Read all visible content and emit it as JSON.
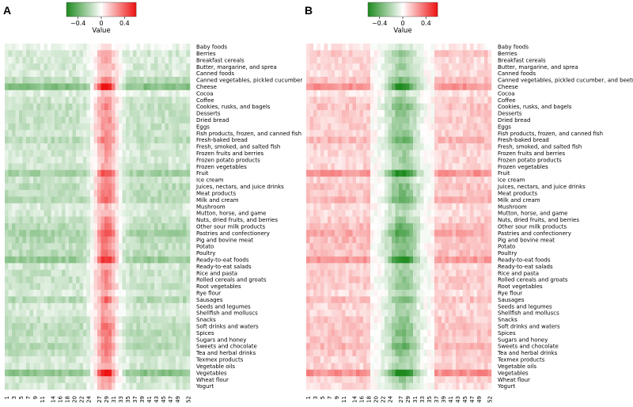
{
  "chart_data": [
    {
      "type": "heatmap",
      "panel_label": "A",
      "legend": {
        "title": "Value",
        "ticks": [
          "−0.4",
          "0",
          "0.4"
        ],
        "range": [
          -0.6,
          0.6
        ],
        "low_color": "#1e8a1e",
        "mid_color": "#ffffff",
        "high_color": "#ee1111"
      },
      "categories": [
        "Baby foods",
        "Berries",
        "Breakfast cereals",
        "Butter, margarine, and sprea",
        "Canned foods",
        "Canned vegetables, pickled cucumber",
        "Cheese",
        "Cocoa",
        "Coffee",
        "Cookies, rusks, and bagels",
        "Desserts",
        "Dried bread",
        "Eggs",
        "Fish products, frozen, and canned fish",
        "Fresh-baked bread",
        "Fresh, smoked, and salted fish",
        "Frozen fruits and berries",
        "Frozen potato products",
        "Frozen vegetables",
        "Fruit",
        "Ice cream",
        "Juices, nectars, and juice drinks",
        "Meat products",
        "Milk and cream",
        "Mushroom",
        "Mutton, horse, and game",
        "Nuts, dried fruits, and berries",
        "Other sour milk products",
        "Pastries and confectionery",
        "Pig and bovine meat",
        "Potato",
        "Poultry",
        "Ready-to-eat foods",
        "Ready-to-eat salads",
        "Rice and pasta",
        "Rolled cereals and groats",
        "Root vegetables",
        "Rye flour",
        "Sausages",
        "Seeds and legumes",
        "Shellfish and molluscs",
        "Snacks",
        "Soft drinks and waters",
        "Spices",
        "Sugars and honey",
        "Sweets and chocolate",
        "Tea and herbal drinks",
        "Texmex products",
        "Vegetable oils",
        "Vegetables",
        "Wheat flour",
        "Yogurt"
      ],
      "x_ticks": [
        "1",
        "3",
        "5",
        "7",
        "9",
        "11",
        "14",
        "16",
        "18",
        "20",
        "22",
        "24",
        "27",
        "29",
        "31",
        "33",
        "35",
        "37",
        "39",
        "41",
        "43",
        "45",
        "47",
        "49",
        "52"
      ],
      "weeks": 52,
      "row_intensity": [
        0.15,
        0.35,
        0.3,
        0.35,
        0.3,
        0.55,
        1.0,
        0.25,
        0.4,
        0.5,
        0.45,
        0.45,
        0.45,
        0.4,
        0.55,
        0.4,
        0.35,
        0.35,
        0.4,
        0.75,
        0.4,
        0.55,
        0.55,
        0.6,
        0.3,
        0.35,
        0.45,
        0.6,
        0.75,
        0.6,
        0.5,
        0.55,
        0.85,
        0.35,
        0.45,
        0.45,
        0.45,
        0.3,
        0.6,
        0.35,
        0.35,
        0.45,
        0.55,
        0.55,
        0.45,
        0.6,
        0.5,
        0.35,
        0.35,
        0.95,
        0.4,
        0.35
      ],
      "value_pattern": "Weeks 1–22 and 38–52 mildly negative (green); peak positive (red) around weeks 25–33."
    },
    {
      "type": "heatmap",
      "panel_label": "B",
      "legend": {
        "title": "Value",
        "ticks": [
          "−0.4",
          "0",
          "0.4"
        ],
        "range": [
          -0.6,
          0.6
        ],
        "low_color": "#1e8a1e",
        "mid_color": "#ffffff",
        "high_color": "#ee1111"
      },
      "categories": [
        "Baby foods",
        "Berries",
        "Breakfast cereals",
        "Butter, margarine, and sprea",
        "Canned foods",
        "Canned vegetables, pickled cucumber, and beetroot",
        "Cheese",
        "Cocoa",
        "Coffee",
        "Cookies, rusks, and bagels",
        "Desserts",
        "Dried bread",
        "Eggs",
        "Fish products, frozen, and canned fish",
        "Fresh-baked bread",
        "Fresh, smoked, and salted fish",
        "Frozen fruits and berries",
        "Frozen potato products",
        "Frozen vegetables",
        "Fruit",
        "Ice cream",
        "Juices, nectars, and juice drinks",
        "Meat products",
        "Milk and cream",
        "Mushroom",
        "Mutton, horse, and game",
        "Nuts, dried fruits, and berries",
        "Other sour milk products",
        "Pastries and confectionery",
        "Pig and bovine meat",
        "Potato",
        "Poultry",
        "Ready-to-eat foods",
        "Ready-to-eat salads",
        "Rice and pasta",
        "Rolled cereals and groats",
        "Root vegetables",
        "Rye flour",
        "Sausages",
        "Seeds and legumes",
        "Shellfish and molluscs",
        "Snacks",
        "Soft drinks and waters",
        "Spices",
        "Sugars and honey",
        "Sweets and chocolate",
        "Tea and herbal drinks",
        "Texmex products",
        "Vegetable oils",
        "Vegetables",
        "Wheat flour",
        "Yogurt"
      ],
      "x_ticks": [
        "1",
        "3",
        "5",
        "7",
        "9",
        "11",
        "14",
        "16",
        "18",
        "20",
        "22",
        "24",
        "27",
        "29",
        "31",
        "33",
        "35",
        "37",
        "39",
        "41",
        "43",
        "45",
        "47",
        "49",
        "52"
      ],
      "weeks": 52,
      "row_intensity": [
        0.15,
        0.45,
        0.3,
        0.35,
        0.3,
        0.5,
        0.9,
        0.25,
        0.4,
        0.5,
        0.45,
        0.4,
        0.4,
        0.4,
        0.6,
        0.4,
        0.35,
        0.35,
        0.35,
        0.9,
        0.35,
        0.5,
        0.5,
        0.6,
        0.3,
        0.3,
        0.4,
        0.55,
        0.7,
        0.55,
        0.5,
        0.5,
        0.85,
        0.35,
        0.4,
        0.45,
        0.4,
        0.3,
        0.55,
        0.35,
        0.35,
        0.45,
        0.5,
        0.5,
        0.45,
        0.6,
        0.45,
        0.35,
        0.35,
        0.95,
        0.4,
        0.3
      ],
      "value_pattern": "Weeks 1–18 and 37–52 positive (red); negative (green) around weeks 22–33."
    }
  ]
}
